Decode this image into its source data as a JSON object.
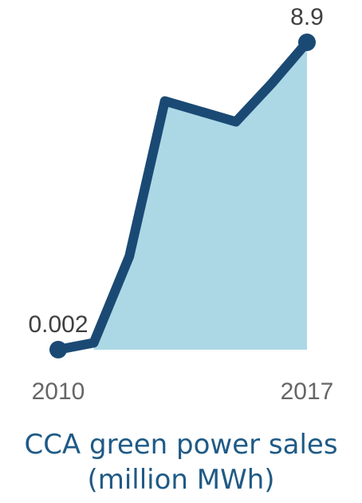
{
  "chart_data": {
    "type": "area",
    "x": [
      2010,
      2011,
      2012,
      2013,
      2014,
      2015,
      2016,
      2017
    ],
    "values": [
      0.002,
      0.2,
      2.7,
      7.2,
      6.9,
      6.6,
      7.7,
      8.9
    ],
    "start_label": "2010",
    "end_label": "2017",
    "start_value_label": "0.002",
    "end_value_label": "8.9",
    "title_line1": "CCA green power sales",
    "title_line2": "(million MWh)",
    "xlim": [
      2010,
      2017
    ],
    "ylim": [
      0,
      8.9
    ],
    "line_color": "#1a4a74",
    "fill_color": "#acd8e6",
    "label_color": "#404040",
    "year_color": "#666666",
    "caption_color": "#1f5a86",
    "grid": false,
    "legend": "none"
  }
}
